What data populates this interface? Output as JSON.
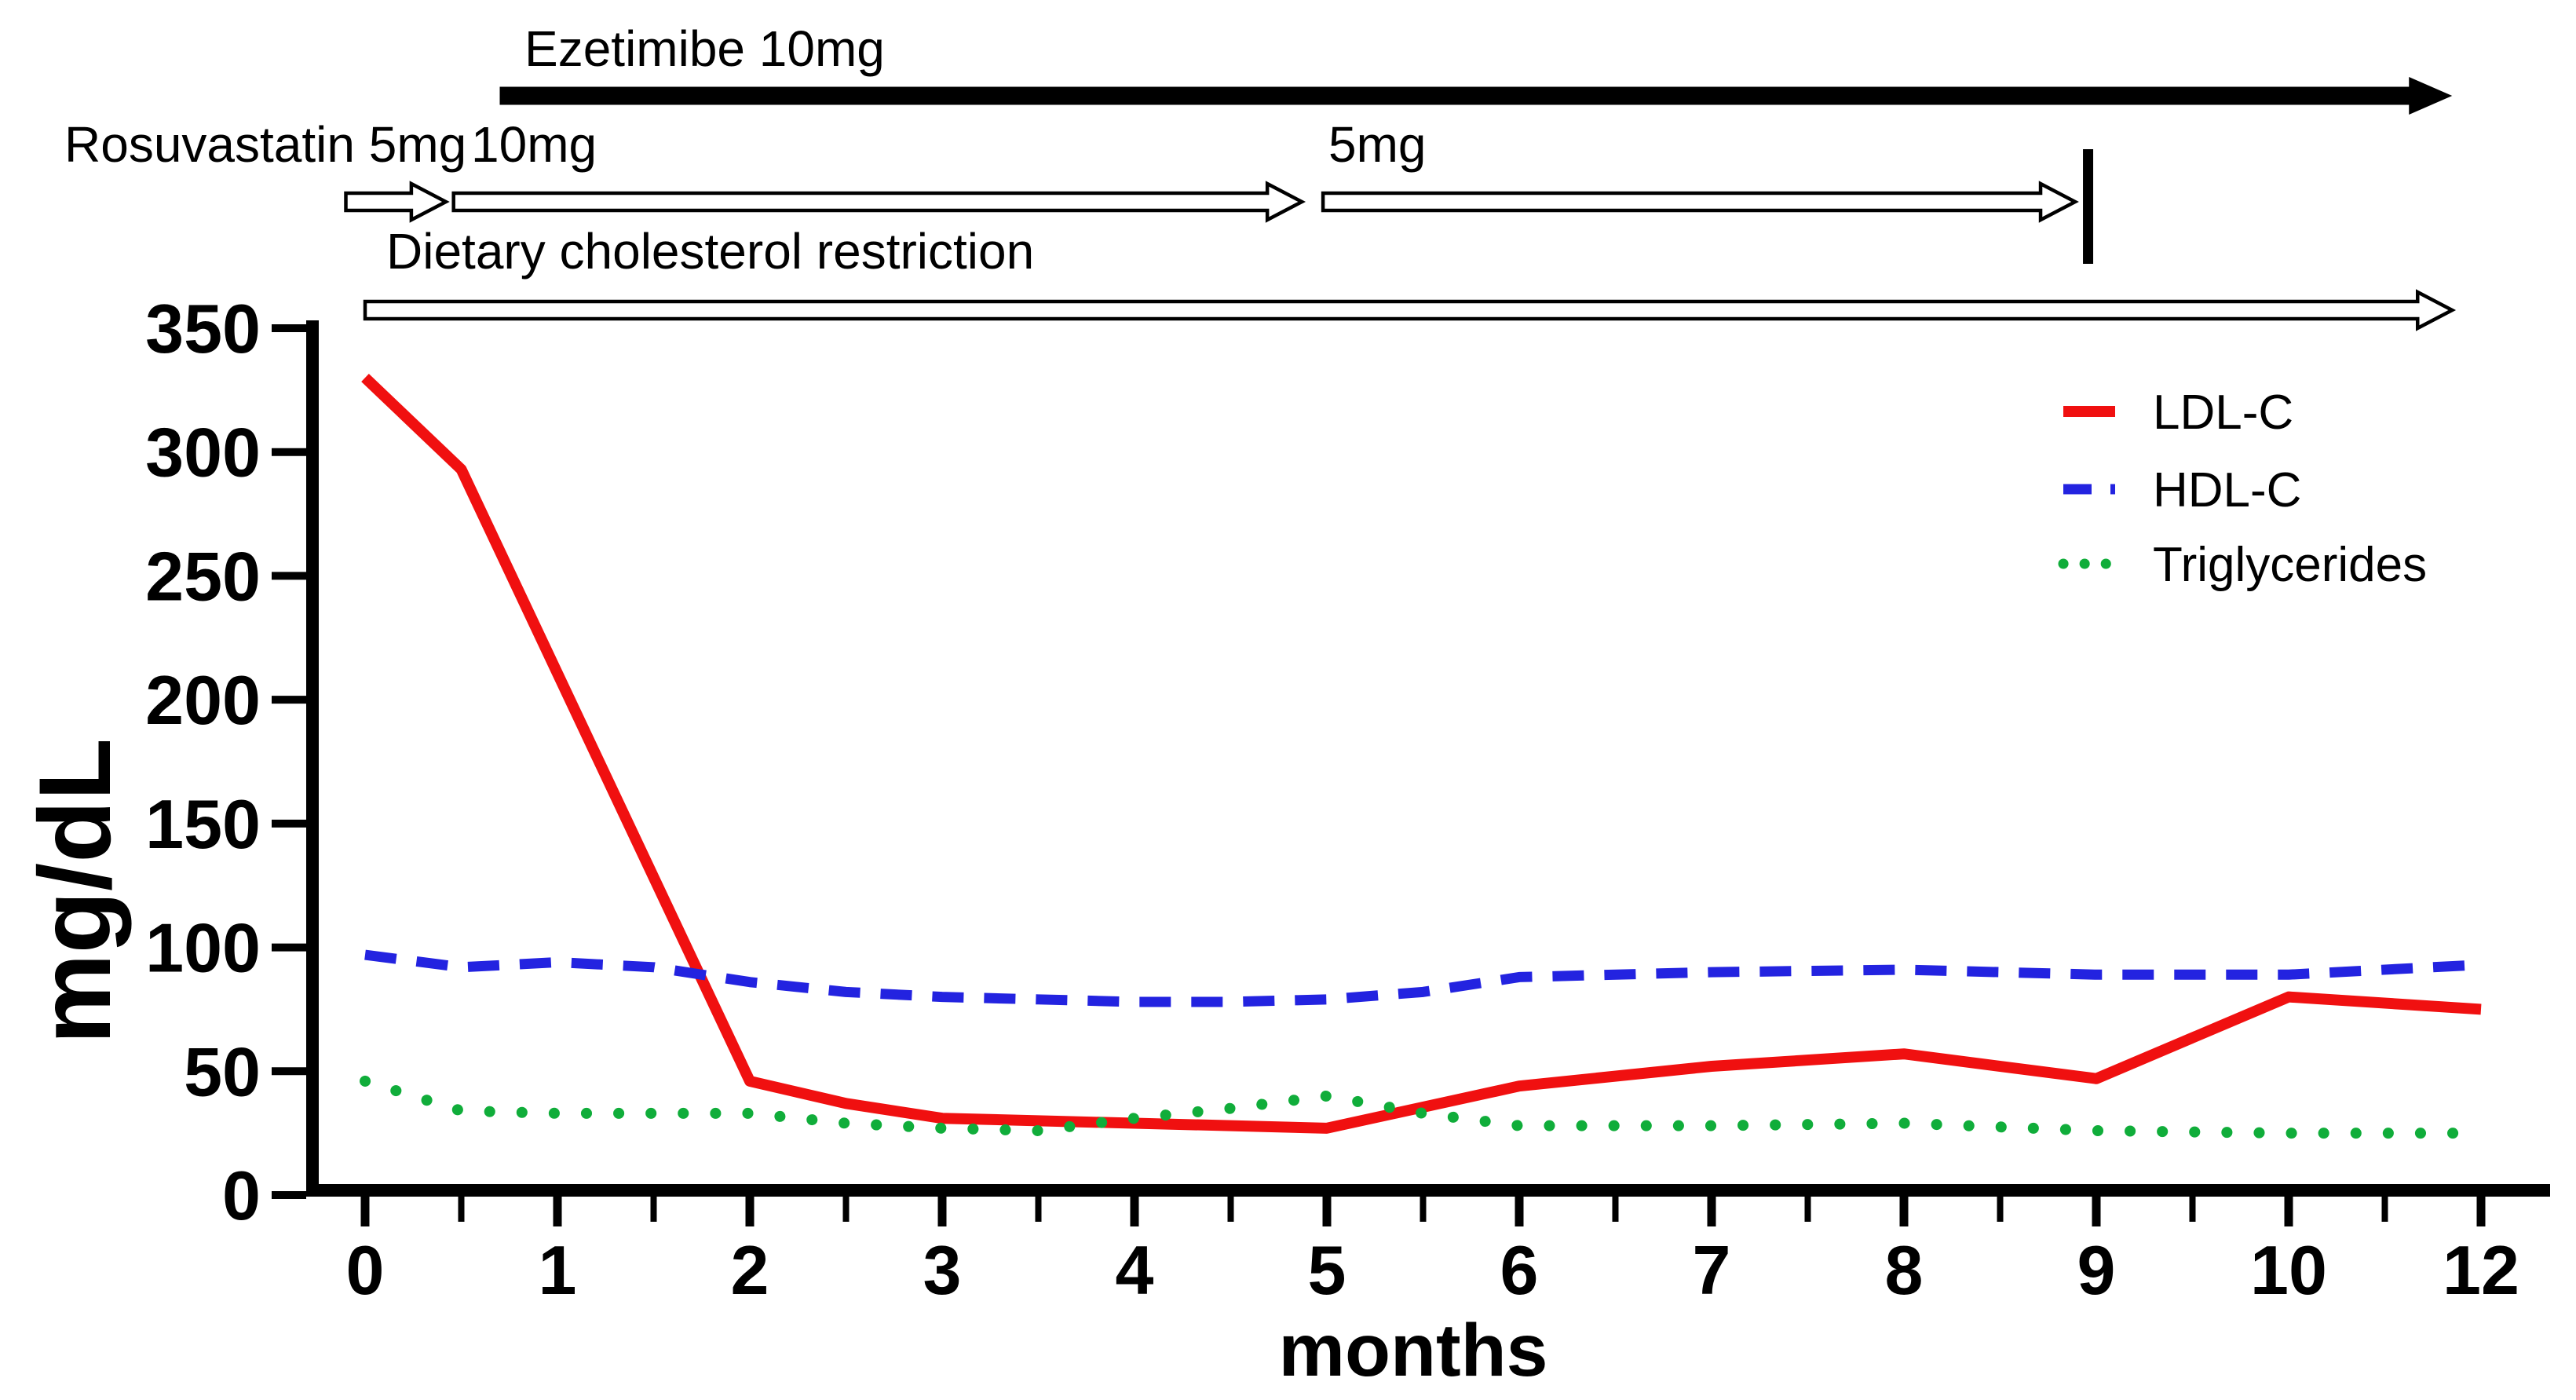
{
  "figure": {
    "background": "#ffffff",
    "axis_color": "#000000"
  },
  "chart_data": {
    "type": "line",
    "title": "",
    "xlabel": "months",
    "ylabel": "mg/dL",
    "ylim": [
      0,
      350
    ],
    "y_tick_interval": 50,
    "y_tick_labels": [
      "0",
      "50",
      "100",
      "150",
      "200",
      "250",
      "300",
      "350"
    ],
    "x_axis": {
      "major_tick_months": [
        0,
        1,
        2,
        3,
        4,
        5,
        6,
        7,
        8,
        9,
        10,
        12
      ],
      "major_tick_labels": [
        "0",
        "1",
        "2",
        "3",
        "4",
        "5",
        "6",
        "7",
        "8",
        "9",
        "10",
        "12"
      ],
      "minor_ticks_every": 0.5,
      "note": "no label for month 11; month 12 is plotted one slot after month 10"
    },
    "grid": false,
    "legend_position": "top-right",
    "series": [
      {
        "name": "LDL-C",
        "color": "#f01010",
        "line_style": "solid",
        "points_month_mgdl": [
          [
            0,
            330
          ],
          [
            0.5,
            293
          ],
          [
            2,
            46
          ],
          [
            2.5,
            37
          ],
          [
            3,
            31
          ],
          [
            3.5,
            30
          ],
          [
            4,
            29
          ],
          [
            4.5,
            28
          ],
          [
            5,
            27
          ],
          [
            6,
            44
          ],
          [
            7,
            52
          ],
          [
            8,
            57
          ],
          [
            9,
            47
          ],
          [
            10,
            80
          ],
          [
            12,
            75
          ]
        ]
      },
      {
        "name": "HDL-C",
        "color": "#2323e0",
        "line_style": "dashed",
        "points_month_mgdl": [
          [
            0,
            97
          ],
          [
            0.5,
            92
          ],
          [
            1,
            94
          ],
          [
            1.5,
            92
          ],
          [
            2,
            86
          ],
          [
            2.5,
            82
          ],
          [
            3,
            80
          ],
          [
            3.5,
            79
          ],
          [
            4,
            78
          ],
          [
            4.5,
            78
          ],
          [
            5,
            79
          ],
          [
            5.5,
            82
          ],
          [
            6,
            88
          ],
          [
            7,
            90
          ],
          [
            8,
            91
          ],
          [
            9,
            89
          ],
          [
            10,
            89
          ],
          [
            12,
            93
          ]
        ]
      },
      {
        "name": "Triglycerides",
        "color": "#10ad3a",
        "line_style": "dotted",
        "points_month_mgdl": [
          [
            0,
            46
          ],
          [
            0.5,
            34
          ],
          [
            1,
            33
          ],
          [
            1.5,
            33
          ],
          [
            2,
            33
          ],
          [
            2.5,
            29
          ],
          [
            3,
            27
          ],
          [
            3.5,
            26
          ],
          [
            4,
            31
          ],
          [
            4.5,
            35
          ],
          [
            5,
            40
          ],
          [
            5.5,
            33
          ],
          [
            6,
            28
          ],
          [
            7,
            28
          ],
          [
            8,
            29
          ],
          [
            9,
            26
          ],
          [
            10,
            25
          ],
          [
            12,
            25
          ]
        ]
      }
    ],
    "annotations": [
      {
        "label": "Ezetimibe 10mg",
        "style": "solid-arrow",
        "start_month": 0.7,
        "end_month": 11.7
      },
      {
        "label": "Rosuvastatin 5mg",
        "style": "open-arrow",
        "start_month": -0.1,
        "end_month": 0.42
      },
      {
        "label": "10mg",
        "style": "open-arrow",
        "start_month": 0.46,
        "end_month": 4.87
      },
      {
        "label": "5mg",
        "style": "open-arrow",
        "start_month": 4.98,
        "end_month": 8.89,
        "end_cap": "stop-bar"
      },
      {
        "label": "Dietary cholesterol restriction",
        "style": "open-arrow",
        "start_month": 0.0,
        "end_month": 11.7
      }
    ]
  }
}
